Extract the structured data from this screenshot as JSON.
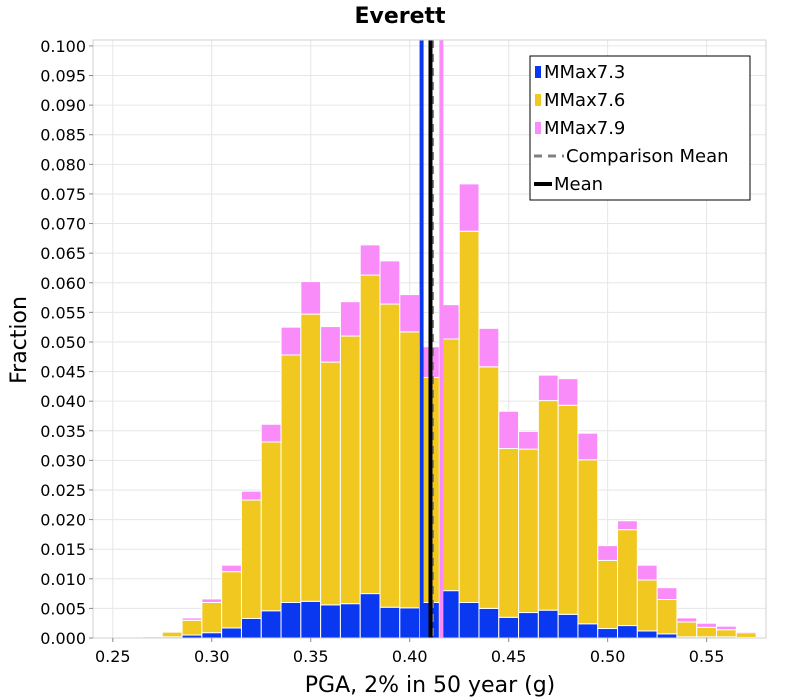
{
  "chart_data": {
    "type": "bar",
    "stacked": true,
    "title": "Everett",
    "xlabel": "PGA, 2% in 50 year (g)",
    "ylabel": "Fraction",
    "xlim": [
      0.24,
      0.58
    ],
    "ylim": [
      0,
      0.101
    ],
    "bin_width": 0.01,
    "x_ticks": [
      "0.25",
      "0.30",
      "0.35",
      "0.40",
      "0.45",
      "0.50",
      "0.55"
    ],
    "x_tick_values": [
      0.25,
      0.3,
      0.35,
      0.4,
      0.45,
      0.5,
      0.55
    ],
    "y_ticks": [
      "0.000",
      "0.005",
      "0.010",
      "0.015",
      "0.020",
      "0.025",
      "0.030",
      "0.035",
      "0.040",
      "0.045",
      "0.050",
      "0.055",
      "0.060",
      "0.065",
      "0.070",
      "0.075",
      "0.080",
      "0.085",
      "0.090",
      "0.095",
      "0.100"
    ],
    "y_tick_values": [
      0.0,
      0.005,
      0.01,
      0.015,
      0.02,
      0.025,
      0.03,
      0.035,
      0.04,
      0.045,
      0.05,
      0.055,
      0.06,
      0.065,
      0.07,
      0.075,
      0.08,
      0.085,
      0.09,
      0.095,
      0.1
    ],
    "bins": [
      0.27,
      0.28,
      0.29,
      0.3,
      0.31,
      0.32,
      0.33,
      0.34,
      0.35,
      0.36,
      0.37,
      0.38,
      0.39,
      0.4,
      0.41,
      0.42,
      0.43,
      0.44,
      0.45,
      0.46,
      0.47,
      0.48,
      0.49,
      0.5,
      0.51,
      0.52,
      0.53,
      0.54,
      0.55,
      0.56,
      0.57
    ],
    "series": [
      {
        "name": "MMax7.3",
        "color": "#0a37f0",
        "values": [
          0.0,
          0.0002,
          0.0005,
          0.0009,
          0.0017,
          0.0033,
          0.0046,
          0.006,
          0.0062,
          0.0056,
          0.0058,
          0.0075,
          0.0052,
          0.0051,
          0.006,
          0.008,
          0.006,
          0.005,
          0.0035,
          0.0043,
          0.0047,
          0.004,
          0.0024,
          0.0016,
          0.0021,
          0.0012,
          0.0007,
          0.0002,
          0.0002,
          0.0002,
          0.0001
        ]
      },
      {
        "name": "MMax7.6",
        "color": "#f0c820",
        "values": [
          0.0002,
          0.0008,
          0.0025,
          0.0051,
          0.0095,
          0.02,
          0.0285,
          0.0418,
          0.0485,
          0.041,
          0.0452,
          0.0538,
          0.0512,
          0.0466,
          0.038,
          0.0425,
          0.0627,
          0.0408,
          0.0285,
          0.0276,
          0.0354,
          0.0353,
          0.0277,
          0.0115,
          0.0162,
          0.0086,
          0.0058,
          0.0025,
          0.0016,
          0.0012,
          0.0008
        ]
      },
      {
        "name": "MMax7.9",
        "color": "#fa8cfa",
        "values": [
          0.0,
          0.0001,
          0.0004,
          0.0006,
          0.0011,
          0.0015,
          0.003,
          0.0047,
          0.0055,
          0.006,
          0.0058,
          0.0051,
          0.0073,
          0.0063,
          0.0052,
          0.0058,
          0.008,
          0.0065,
          0.0063,
          0.003,
          0.0043,
          0.0045,
          0.0045,
          0.0025,
          0.0015,
          0.0025,
          0.002,
          0.0007,
          0.0007,
          0.0006,
          0.0002
        ]
      }
    ],
    "vertical_lines": [
      {
        "name": "MMax7.3",
        "x": 0.406,
        "color": "#0a37f0",
        "style": "solid",
        "in_legend": false
      },
      {
        "name": "MMax7.9",
        "x": 0.416,
        "color": "#fa8cfa",
        "style": "solid",
        "in_legend": false
      },
      {
        "name": "Comparison Mean",
        "x": 0.4115,
        "color": "#808080",
        "style": "dashed",
        "in_legend": true
      },
      {
        "name": "Mean",
        "x": 0.4105,
        "color": "#000000",
        "style": "solid",
        "in_legend": true
      }
    ],
    "legend": {
      "placement": "top-right",
      "entries": [
        {
          "label": "MMax7.3",
          "kind": "swatch",
          "color": "#0a37f0"
        },
        {
          "label": "MMax7.6",
          "kind": "swatch",
          "color": "#f0c820"
        },
        {
          "label": "MMax7.9",
          "kind": "swatch",
          "color": "#fa8cfa"
        },
        {
          "label": "Comparison Mean",
          "kind": "dashed-line",
          "color": "#808080"
        },
        {
          "label": "Mean",
          "kind": "solid-line",
          "color": "#000000"
        }
      ]
    },
    "grid": true
  }
}
